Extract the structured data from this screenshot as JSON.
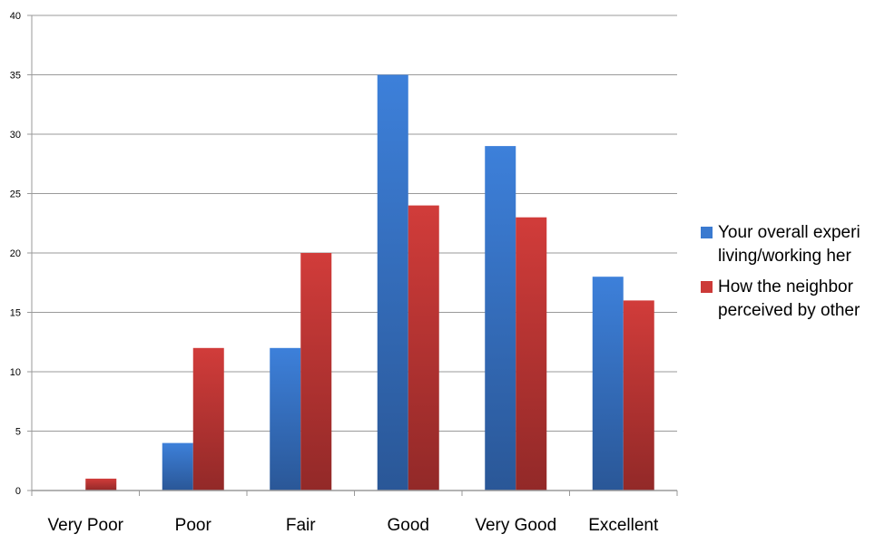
{
  "chart_data": {
    "type": "bar",
    "categories": [
      "Very Poor",
      "Poor",
      "Fair",
      "Good",
      "Very Good",
      "Excellent"
    ],
    "series": [
      {
        "name": "Your overall experi\nliving/working her",
        "color": "#3a7ad0",
        "values": [
          0,
          4,
          12,
          35,
          29,
          18
        ]
      },
      {
        "name": "How the neighbor\nperceived by other",
        "color": "#cc3a38",
        "values": [
          1,
          12,
          20,
          24,
          23,
          16
        ]
      }
    ],
    "ylim": [
      0,
      40
    ],
    "yticks": [
      0,
      5,
      10,
      15,
      20,
      25,
      30,
      35,
      40
    ],
    "grid": true,
    "legend_position": "right",
    "title": "",
    "xlabel": "",
    "ylabel": ""
  }
}
